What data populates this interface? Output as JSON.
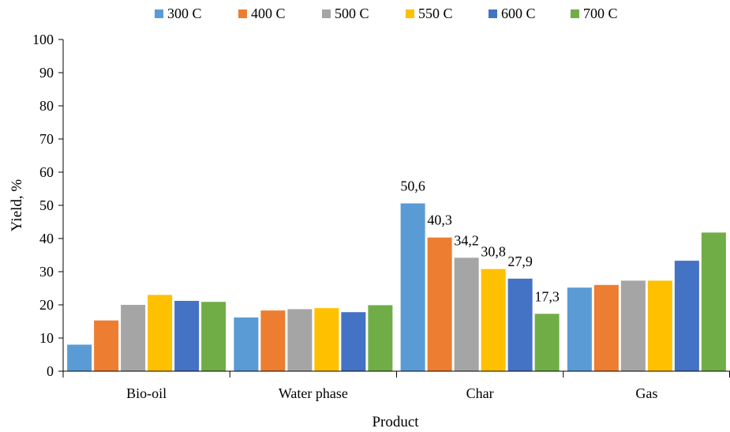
{
  "chart_data": {
    "type": "bar",
    "title": "",
    "xlabel": "Product",
    "ylabel": "Yield, %",
    "ylim": [
      0,
      100
    ],
    "yticks": [
      0,
      10,
      20,
      30,
      40,
      50,
      60,
      70,
      80,
      90,
      100
    ],
    "grid": false,
    "legend_position": "top-center",
    "categories": [
      "Bio-oil",
      "Water phase",
      "Char",
      "Gas"
    ],
    "series": [
      {
        "name": "300 C",
        "color": "#5B9BD5",
        "values": [
          8.0,
          16.2,
          50.6,
          25.2
        ]
      },
      {
        "name": "400 C",
        "color": "#ED7D31",
        "values": [
          15.3,
          18.3,
          40.3,
          26.0
        ]
      },
      {
        "name": "500 C",
        "color": "#A5A5A5",
        "values": [
          20.0,
          18.7,
          34.2,
          27.3
        ]
      },
      {
        "name": "550 C",
        "color": "#FFC000",
        "values": [
          23.0,
          19.0,
          30.8,
          27.3
        ]
      },
      {
        "name": "600 C",
        "color": "#4472C4",
        "values": [
          21.2,
          17.8,
          27.9,
          33.3
        ]
      },
      {
        "name": "700 C",
        "color": "#70AD47",
        "values": [
          20.9,
          19.9,
          17.3,
          41.8
        ]
      }
    ],
    "data_labels": [
      {
        "category": "Char",
        "series": "300 C",
        "text": "50,6"
      },
      {
        "category": "Char",
        "series": "400 C",
        "text": "40,3"
      },
      {
        "category": "Char",
        "series": "500 C",
        "text": "34,2"
      },
      {
        "category": "Char",
        "series": "550 C",
        "text": "30,8"
      },
      {
        "category": "Char",
        "series": "600 C",
        "text": "27,9"
      },
      {
        "category": "Char",
        "series": "700 C",
        "text": "17,3"
      }
    ]
  }
}
